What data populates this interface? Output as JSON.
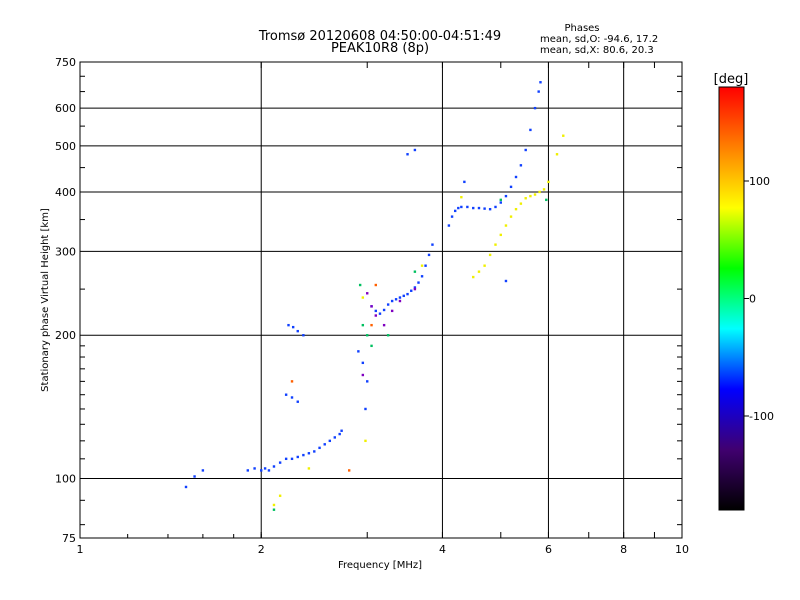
{
  "chart_data": {
    "type": "scatter",
    "title": "Tromsø 20120608 04:50:00-04:51:49",
    "subtitle": "PEAK10R8 (8p)",
    "phase_block": {
      "heading": "Phases",
      "line1": "mean, sd,O: -94.6, 17.2",
      "line2": "mean, sd,X: 80.6, 20.3"
    },
    "xlabel": "Frequency [MHz]",
    "ylabel": "Stationary phase Virtual Height [km]",
    "x_scale": "log",
    "y_scale": "log",
    "xlim": [
      1,
      10
    ],
    "ylim": [
      75,
      750
    ],
    "grid": true,
    "xticks": [
      {
        "value": 1,
        "label": "1"
      },
      {
        "value": 2,
        "label": "2"
      },
      {
        "value": 4,
        "label": "4"
      },
      {
        "value": 6,
        "label": "6"
      },
      {
        "value": 8,
        "label": "8"
      },
      {
        "value": 10,
        "label": "10"
      }
    ],
    "yticks": [
      {
        "value": 75,
        "label": "75"
      },
      {
        "value": 100,
        "label": "100"
      },
      {
        "value": 200,
        "label": "200"
      },
      {
        "value": 300,
        "label": "300"
      },
      {
        "value": 400,
        "label": "400"
      },
      {
        "value": 500,
        "label": "500"
      },
      {
        "value": 600,
        "label": "600"
      },
      {
        "value": 750,
        "label": "750"
      }
    ],
    "colorbar": {
      "label": "[deg]",
      "range": [
        -180,
        180
      ],
      "ticks": [
        {
          "value": 100,
          "label": "100"
        },
        {
          "value": 0,
          "label": "0"
        },
        {
          "value": -100,
          "label": "-100"
        }
      ],
      "colors": [
        "#000000",
        "#400070",
        "#0000ff",
        "#00ffff",
        "#00ff00",
        "#ffff00",
        "#ff8000",
        "#ff0000"
      ]
    },
    "series": [
      {
        "mode": "O",
        "color": "#1040ff",
        "points": [
          [
            1.5,
            96
          ],
          [
            1.55,
            101
          ],
          [
            1.6,
            104
          ],
          [
            1.9,
            104
          ],
          [
            1.95,
            105
          ],
          [
            2.0,
            104
          ],
          [
            2.03,
            105
          ],
          [
            2.06,
            104
          ],
          [
            2.1,
            106
          ],
          [
            2.15,
            108
          ],
          [
            2.2,
            110
          ],
          [
            2.25,
            110
          ],
          [
            2.3,
            111
          ],
          [
            2.35,
            112
          ],
          [
            2.4,
            113
          ],
          [
            2.45,
            114
          ],
          [
            2.5,
            116
          ],
          [
            2.55,
            118
          ],
          [
            2.6,
            120
          ],
          [
            2.65,
            122
          ],
          [
            2.7,
            124
          ],
          [
            2.72,
            126
          ],
          [
            2.2,
            150
          ],
          [
            2.25,
            148
          ],
          [
            2.3,
            145
          ],
          [
            2.22,
            210
          ],
          [
            2.26,
            208
          ],
          [
            2.3,
            204
          ],
          [
            2.35,
            200
          ],
          [
            2.9,
            185
          ],
          [
            2.95,
            175
          ],
          [
            3.0,
            160
          ],
          [
            2.98,
            140
          ],
          [
            3.05,
            230
          ],
          [
            3.1,
            225
          ],
          [
            3.15,
            222
          ],
          [
            3.2,
            226
          ],
          [
            3.25,
            232
          ],
          [
            3.3,
            236
          ],
          [
            3.35,
            238
          ],
          [
            3.4,
            240
          ],
          [
            3.45,
            242
          ],
          [
            3.5,
            244
          ],
          [
            3.55,
            248
          ],
          [
            3.6,
            252
          ],
          [
            3.65,
            258
          ],
          [
            3.7,
            266
          ],
          [
            3.75,
            280
          ],
          [
            3.8,
            295
          ],
          [
            3.85,
            310
          ],
          [
            3.5,
            480
          ],
          [
            3.6,
            490
          ],
          [
            4.1,
            340
          ],
          [
            4.15,
            355
          ],
          [
            4.2,
            365
          ],
          [
            4.25,
            370
          ],
          [
            4.3,
            372
          ],
          [
            4.4,
            372
          ],
          [
            4.5,
            370
          ],
          [
            4.6,
            370
          ],
          [
            4.7,
            369
          ],
          [
            4.8,
            368
          ],
          [
            4.9,
            372
          ],
          [
            5.0,
            380
          ],
          [
            5.1,
            392
          ],
          [
            5.2,
            410
          ],
          [
            5.3,
            430
          ],
          [
            5.4,
            455
          ],
          [
            5.5,
            490
          ],
          [
            5.6,
            540
          ],
          [
            5.7,
            600
          ],
          [
            5.78,
            650
          ],
          [
            5.82,
            680
          ],
          [
            5.1,
            260
          ],
          [
            4.35,
            420
          ]
        ]
      },
      {
        "mode": "X",
        "color": "#f0f000",
        "points": [
          [
            2.1,
            88
          ],
          [
            2.15,
            92
          ],
          [
            2.4,
            105
          ],
          [
            4.5,
            265
          ],
          [
            4.6,
            272
          ],
          [
            4.7,
            280
          ],
          [
            4.8,
            295
          ],
          [
            4.9,
            310
          ],
          [
            5.0,
            325
          ],
          [
            5.1,
            340
          ],
          [
            5.2,
            355
          ],
          [
            5.3,
            368
          ],
          [
            5.4,
            378
          ],
          [
            5.5,
            388
          ],
          [
            5.6,
            392
          ],
          [
            5.7,
            395
          ],
          [
            5.8,
            400
          ],
          [
            5.9,
            405
          ],
          [
            6.0,
            420
          ],
          [
            6.2,
            480
          ],
          [
            6.35,
            525
          ],
          [
            2.95,
            240
          ],
          [
            3.7,
            280
          ],
          [
            4.3,
            390
          ],
          [
            2.98,
            120
          ]
        ]
      },
      {
        "mode": "mixed",
        "color": "#00c060",
        "points": [
          [
            2.1,
            86
          ],
          [
            2.95,
            210
          ],
          [
            3.0,
            200
          ],
          [
            3.05,
            190
          ],
          [
            3.6,
            272
          ],
          [
            5.0,
            385
          ],
          [
            5.95,
            385
          ],
          [
            2.92,
            255
          ],
          [
            3.25,
            200
          ]
        ]
      },
      {
        "mode": "mixed",
        "color": "#8000c0",
        "points": [
          [
            3.0,
            245
          ],
          [
            3.05,
            230
          ],
          [
            3.1,
            220
          ],
          [
            3.4,
            236
          ],
          [
            3.6,
            250
          ],
          [
            2.95,
            165
          ],
          [
            3.2,
            210
          ],
          [
            3.3,
            225
          ]
        ]
      },
      {
        "mode": "mixed",
        "color": "#ff6000",
        "points": [
          [
            2.25,
            160
          ],
          [
            2.8,
            104
          ],
          [
            3.05,
            210
          ],
          [
            3.1,
            255
          ]
        ]
      }
    ]
  }
}
